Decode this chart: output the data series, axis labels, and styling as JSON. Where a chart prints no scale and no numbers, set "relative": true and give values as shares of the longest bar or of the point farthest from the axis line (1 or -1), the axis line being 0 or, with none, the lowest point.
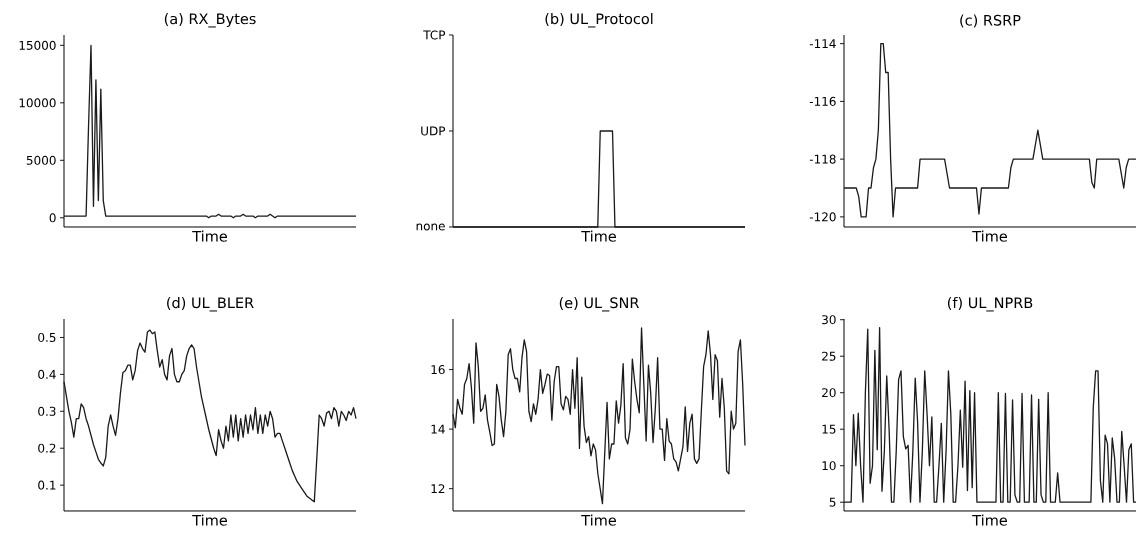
{
  "chart_data": [
    {
      "type": "line",
      "title": "(a) RX_Bytes",
      "xlabel": "Time",
      "tick_labels": "y",
      "color": "#1a1a1a",
      "line_style": "solid",
      "ylim": [
        -800,
        15900
      ],
      "yticks": [
        0,
        5000,
        10000,
        15000
      ],
      "categories": [
        null,
        null,
        null,
        null,
        null,
        null,
        null,
        null,
        null,
        null,
        null,
        null,
        null,
        null,
        null,
        null,
        null,
        null,
        null,
        null,
        null,
        null,
        null,
        null,
        null,
        null,
        null,
        null,
        null,
        null,
        null,
        null,
        null,
        null,
        null,
        null,
        null,
        null,
        null,
        null,
        null,
        null,
        null,
        null,
        null,
        null,
        null,
        null,
        null,
        null,
        null,
        null,
        null,
        null,
        null,
        null,
        null,
        null,
        null,
        null,
        null,
        null,
        null,
        null,
        null,
        null,
        null,
        null,
        null,
        null,
        null,
        null,
        null,
        null,
        null,
        null,
        null,
        null,
        null,
        null,
        null,
        null,
        null,
        null,
        null,
        null,
        null,
        null,
        null,
        null,
        null,
        null,
        null,
        null,
        null,
        null,
        null,
        null,
        null,
        null,
        null,
        null,
        null,
        null,
        null,
        null,
        null,
        null,
        null,
        null,
        null,
        null,
        null,
        null,
        null,
        null,
        null,
        null,
        null,
        null
      ],
      "values": [
        150,
        150,
        150,
        150,
        150,
        150,
        150,
        150,
        150,
        150,
        8000,
        15000,
        1000,
        12000,
        1500,
        11200,
        1500,
        150,
        150,
        150,
        150,
        150,
        150,
        150,
        150,
        150,
        150,
        150,
        150,
        150,
        150,
        150,
        150,
        150,
        150,
        150,
        150,
        150,
        150,
        150,
        150,
        150,
        150,
        150,
        150,
        150,
        150,
        150,
        150,
        150,
        150,
        150,
        150,
        150,
        150,
        150,
        150,
        150,
        150,
        0,
        150,
        150,
        150,
        300,
        150,
        150,
        150,
        150,
        150,
        0,
        150,
        150,
        150,
        300,
        150,
        150,
        150,
        150,
        0,
        150,
        150,
        150,
        150,
        150,
        300,
        150,
        0,
        150,
        150,
        150,
        150,
        150,
        150,
        150,
        150,
        150,
        150,
        150,
        150,
        150,
        150,
        150,
        150,
        150,
        150,
        150,
        150,
        150,
        150,
        150,
        150,
        150,
        150,
        150,
        150,
        150,
        150,
        150,
        150,
        150
      ]
    },
    {
      "type": "line",
      "title": "(b) UL_Protocol",
      "xlabel": "Time",
      "tick_labels": "y",
      "color": "#1a1a1a",
      "line_style": "solid",
      "relative": true,
      "y_categories": [
        "TCP",
        "UDP",
        "none"
      ],
      "categories": [
        null,
        null,
        null,
        null,
        null,
        null,
        null,
        null,
        null,
        null,
        null,
        null,
        null,
        null,
        null,
        null,
        null,
        null,
        null,
        null,
        null,
        null,
        null,
        null,
        null,
        null,
        null,
        null,
        null,
        null,
        null,
        null,
        null,
        null,
        null,
        null,
        null,
        null,
        null,
        null,
        null,
        null,
        null,
        null,
        null,
        null,
        null,
        null,
        null,
        null,
        null,
        null,
        null,
        null,
        null,
        null,
        null,
        null,
        null,
        null,
        null,
        null,
        null,
        null,
        null,
        null,
        null,
        null,
        null,
        null,
        null,
        null,
        null,
        null,
        null,
        null,
        null,
        null,
        null,
        null,
        null,
        null,
        null,
        null,
        null,
        null,
        null,
        null,
        null,
        null,
        null,
        null,
        null,
        null,
        null,
        null,
        null,
        null,
        null,
        null,
        null,
        null,
        null,
        null,
        null,
        null,
        null,
        null,
        null,
        null,
        null,
        null,
        null,
        null,
        null,
        null,
        null,
        null,
        null,
        null
      ],
      "values": [
        0,
        0,
        0,
        0,
        0,
        0,
        0,
        0,
        0,
        0,
        0,
        0,
        0,
        0,
        0,
        0,
        0,
        0,
        0,
        0,
        0,
        0,
        0,
        0,
        0,
        0,
        0,
        0,
        0,
        0,
        0,
        0,
        0,
        0,
        0,
        0,
        0,
        0,
        0,
        0,
        0,
        0,
        0,
        0,
        0,
        0,
        0,
        0,
        0,
        0,
        0,
        0,
        0,
        0,
        0,
        0,
        0,
        0,
        0,
        0,
        1,
        1,
        1,
        1,
        1,
        1,
        0,
        0,
        0,
        0,
        0,
        0,
        0,
        0,
        0,
        0,
        0,
        0,
        0,
        0,
        0,
        0,
        0,
        0,
        0,
        0,
        0,
        0,
        0,
        0,
        0,
        0,
        0,
        0,
        0,
        0,
        0,
        0,
        0,
        0,
        0,
        0,
        0,
        0,
        0,
        0,
        0,
        0,
        0,
        0,
        0,
        0,
        0,
        0,
        0,
        0,
        0,
        0,
        0,
        0
      ]
    },
    {
      "type": "line",
      "title": "(c) RSRP",
      "xlabel": "Time",
      "tick_labels": "y",
      "color": "#1a1a1a",
      "line_style": "solid",
      "ylim": [
        -120.35,
        -113.7
      ],
      "yticks": [
        -120,
        -118,
        -116,
        -114
      ],
      "categories": [
        null,
        null,
        null,
        null,
        null,
        null,
        null,
        null,
        null,
        null,
        null,
        null,
        null,
        null,
        null,
        null,
        null,
        null,
        null,
        null,
        null,
        null,
        null,
        null,
        null,
        null,
        null,
        null,
        null,
        null,
        null,
        null,
        null,
        null,
        null,
        null,
        null,
        null,
        null,
        null,
        null,
        null,
        null,
        null,
        null,
        null,
        null,
        null,
        null,
        null,
        null,
        null,
        null,
        null,
        null,
        null,
        null,
        null,
        null,
        null,
        null,
        null,
        null,
        null,
        null,
        null,
        null,
        null,
        null,
        null,
        null,
        null,
        null,
        null,
        null,
        null,
        null,
        null,
        null,
        null,
        null,
        null,
        null,
        null,
        null,
        null,
        null,
        null,
        null,
        null,
        null,
        null,
        null,
        null,
        null,
        null,
        null,
        null,
        null,
        null,
        null,
        null,
        null,
        null,
        null,
        null,
        null,
        null,
        null,
        null,
        null,
        null,
        null,
        null,
        null,
        null,
        null,
        null,
        null,
        null
      ],
      "values": [
        -119,
        -119,
        -119,
        -119,
        -119,
        -119,
        -119.3,
        -120,
        -120,
        -120,
        -119,
        -119,
        -118.3,
        -118,
        -117,
        -114,
        -114,
        -115,
        -115,
        -118,
        -120,
        -119,
        -119,
        -119,
        -119,
        -119,
        -119,
        -119,
        -119,
        -119,
        -119,
        -118,
        -118,
        -118,
        -118,
        -118,
        -118,
        -118,
        -118,
        -118,
        -118,
        -118,
        -118.5,
        -119,
        -119,
        -119,
        -119,
        -119,
        -119,
        -119,
        -119,
        -119,
        -119,
        -119,
        -119,
        -119.9,
        -119,
        -119,
        -119,
        -119,
        -119,
        -119,
        -119,
        -119,
        -119,
        -119,
        -119,
        -119,
        -118.3,
        -118,
        -118,
        -118,
        -118,
        -118,
        -118,
        -118,
        -118,
        -118,
        -117.5,
        -117,
        -117.5,
        -118,
        -118,
        -118,
        -118,
        -118,
        -118,
        -118,
        -118,
        -118,
        -118,
        -118,
        -118,
        -118,
        -118,
        -118,
        -118,
        -118,
        -118,
        -118,
        -118,
        -118.8,
        -119,
        -118,
        -118,
        -118,
        -118,
        -118,
        -118,
        -118,
        -118,
        -118,
        -118,
        -118.5,
        -119,
        -118.3,
        -118,
        -118,
        -118,
        -118
      ]
    },
    {
      "type": "line",
      "title": "(d) UL_BLER",
      "xlabel": "Time",
      "tick_labels": "y",
      "color": "#1a1a1a",
      "line_style": "solid",
      "ylim": [
        0.03,
        0.55
      ],
      "yticks": [
        0.1,
        0.2,
        0.3,
        0.4,
        0.5
      ],
      "categories": [
        null,
        null,
        null,
        null,
        null,
        null,
        null,
        null,
        null,
        null,
        null,
        null,
        null,
        null,
        null,
        null,
        null,
        null,
        null,
        null,
        null,
        null,
        null,
        null,
        null,
        null,
        null,
        null,
        null,
        null,
        null,
        null,
        null,
        null,
        null,
        null,
        null,
        null,
        null,
        null,
        null,
        null,
        null,
        null,
        null,
        null,
        null,
        null,
        null,
        null,
        null,
        null,
        null,
        null,
        null,
        null,
        null,
        null,
        null,
        null,
        null,
        null,
        null,
        null,
        null,
        null,
        null,
        null,
        null,
        null,
        null,
        null,
        null,
        null,
        null,
        null,
        null,
        null,
        null,
        null,
        null,
        null,
        null,
        null,
        null,
        null,
        null,
        null,
        null,
        null,
        null,
        null,
        null,
        null,
        null,
        null,
        null,
        null,
        null,
        null,
        null,
        null,
        null,
        null,
        null,
        null,
        null,
        null,
        null,
        null,
        null,
        null,
        null,
        null,
        null,
        null,
        null,
        null,
        null,
        null
      ],
      "values": [
        0.38,
        0.34,
        0.3,
        0.27,
        0.23,
        0.28,
        0.28,
        0.32,
        0.31,
        0.28,
        0.26,
        0.235,
        0.21,
        0.19,
        0.17,
        0.16,
        0.152,
        0.175,
        0.26,
        0.29,
        0.26,
        0.235,
        0.28,
        0.35,
        0.405,
        0.41,
        0.425,
        0.425,
        0.385,
        0.41,
        0.465,
        0.485,
        0.47,
        0.46,
        0.515,
        0.52,
        0.51,
        0.515,
        0.465,
        0.42,
        0.44,
        0.4,
        0.385,
        0.45,
        0.47,
        0.4,
        0.38,
        0.38,
        0.4,
        0.41,
        0.45,
        0.47,
        0.48,
        0.47,
        0.42,
        0.38,
        0.34,
        0.31,
        0.28,
        0.25,
        0.225,
        0.2,
        0.18,
        0.25,
        0.22,
        0.2,
        0.26,
        0.22,
        0.29,
        0.23,
        0.29,
        0.22,
        0.28,
        0.23,
        0.29,
        0.24,
        0.29,
        0.25,
        0.31,
        0.24,
        0.29,
        0.24,
        0.29,
        0.26,
        0.3,
        0.28,
        0.23,
        0.24,
        0.24,
        0.22,
        0.2,
        0.18,
        0.16,
        0.14,
        0.125,
        0.11,
        0.1,
        0.09,
        0.08,
        0.07,
        0.065,
        0.06,
        0.055,
        0.17,
        0.29,
        0.28,
        0.26,
        0.295,
        0.3,
        0.28,
        0.31,
        0.3,
        0.26,
        0.3,
        0.29,
        0.275,
        0.3,
        0.29,
        0.31,
        0.28
      ]
    },
    {
      "type": "line",
      "title": "(e) UL_SNR",
      "xlabel": "Time",
      "tick_labels": "y",
      "color": "#1a1a1a",
      "line_style": "solid",
      "ylim": [
        11.25,
        17.7
      ],
      "yticks": [
        12,
        14,
        16
      ],
      "categories": [
        null,
        null,
        null,
        null,
        null,
        null,
        null,
        null,
        null,
        null,
        null,
        null,
        null,
        null,
        null,
        null,
        null,
        null,
        null,
        null,
        null,
        null,
        null,
        null,
        null,
        null,
        null,
        null,
        null,
        null,
        null,
        null,
        null,
        null,
        null,
        null,
        null,
        null,
        null,
        null,
        null,
        null,
        null,
        null,
        null,
        null,
        null,
        null,
        null,
        null,
        null,
        null,
        null,
        null,
        null,
        null,
        null,
        null,
        null,
        null,
        null,
        null,
        null,
        null,
        null,
        null,
        null,
        null,
        null,
        null,
        null,
        null,
        null,
        null,
        null,
        null,
        null,
        null,
        null,
        null,
        null,
        null,
        null,
        null,
        null,
        null,
        null,
        null,
        null,
        null,
        null,
        null,
        null,
        null,
        null,
        null,
        null,
        null,
        null,
        null,
        null,
        null,
        null,
        null,
        null,
        null,
        null,
        null,
        null,
        null,
        null,
        null,
        null,
        null,
        null,
        null,
        null,
        null,
        null,
        null,
        null,
        null,
        null,
        null,
        null,
        null,
        null,
        null
      ],
      "values": [
        14.5,
        14.05,
        15.0,
        14.7,
        14.5,
        15.5,
        15.7,
        16.2,
        15.4,
        14.2,
        16.9,
        16.1,
        14.6,
        14.7,
        15.15,
        14.3,
        13.9,
        13.45,
        13.5,
        15.5,
        15.1,
        14.3,
        13.75,
        14.6,
        16.5,
        16.7,
        16.0,
        15.7,
        15.7,
        15.25,
        16.4,
        17.0,
        16.6,
        14.6,
        14.25,
        14.85,
        14.5,
        15.0,
        16.0,
        15.2,
        15.5,
        15.85,
        15.8,
        14.3,
        15.6,
        16.1,
        16.1,
        14.85,
        14.65,
        15.1,
        15.0,
        14.5,
        16.0,
        14.7,
        16.4,
        13.35,
        15.75,
        14.1,
        13.55,
        13.75,
        13.1,
        13.5,
        13.3,
        12.5,
        12.0,
        11.5,
        13.2,
        14.9,
        13.0,
        13.5,
        13.5,
        14.95,
        14.2,
        14.8,
        16.2,
        13.7,
        13.5,
        14.0,
        16.35,
        15.6,
        15.0,
        14.55,
        17.4,
        15.5,
        13.6,
        16.15,
        15.2,
        13.55,
        14.7,
        16.4,
        14.0,
        14.0,
        12.95,
        14.35,
        13.6,
        13.5,
        13.0,
        12.9,
        12.6,
        13.0,
        13.4,
        14.75,
        13.25,
        14.2,
        14.5,
        13.0,
        12.85,
        13.0,
        14.6,
        16.1,
        16.5,
        17.3,
        16.5,
        15.0,
        16.5,
        16.3,
        14.4,
        15.7,
        14.7,
        12.6,
        12.5,
        14.6,
        14.0,
        14.2,
        16.6,
        17.0,
        15.5,
        13.45
      ]
    },
    {
      "type": "line",
      "title": "(f) UL_NPRB",
      "xlabel": "Time",
      "tick_labels": "y",
      "color": "#1a1a1a",
      "line_style": "solid",
      "ylim": [
        3.8,
        30.1
      ],
      "yticks": [
        5,
        10,
        15,
        20,
        25,
        30
      ],
      "categories": [
        null,
        null,
        null,
        null,
        null,
        null,
        null,
        null,
        null,
        null,
        null,
        null,
        null,
        null,
        null,
        null,
        null,
        null,
        null,
        null,
        null,
        null,
        null,
        null,
        null,
        null,
        null,
        null,
        null,
        null,
        null,
        null,
        null,
        null,
        null,
        null,
        null,
        null,
        null,
        null,
        null,
        null,
        null,
        null,
        null,
        null,
        null,
        null,
        null,
        null,
        null,
        null,
        null,
        null,
        null,
        null,
        null,
        null,
        null,
        null,
        null,
        null,
        null,
        null,
        null,
        null,
        null,
        null,
        null,
        null,
        null,
        null,
        null,
        null,
        null,
        null,
        null,
        null,
        null,
        null,
        null,
        null,
        null,
        null,
        null,
        null,
        null,
        null,
        null,
        null,
        null,
        null,
        null,
        null,
        null,
        null,
        null,
        null,
        null,
        null,
        null,
        null,
        null,
        null,
        null,
        null,
        null,
        null,
        null,
        null,
        null,
        null,
        null,
        null,
        null,
        null,
        null,
        null,
        null,
        null,
        null,
        null,
        null,
        null
      ],
      "values": [
        5,
        5,
        5,
        5,
        17,
        10,
        17.2,
        10,
        5,
        20,
        28.7,
        7.6,
        10,
        25.8,
        12.2,
        28.9,
        6.5,
        12,
        22.3,
        15,
        5,
        5,
        12,
        21.8,
        23,
        14,
        12.3,
        12.8,
        5,
        12,
        22,
        16,
        5,
        12,
        23,
        17,
        10,
        16.7,
        5,
        5,
        10,
        15.8,
        5,
        12,
        23,
        17,
        5,
        5,
        10,
        17.6,
        9.8,
        21.6,
        6.6,
        20.3,
        7,
        20,
        5,
        5,
        5,
        5,
        5,
        5,
        5,
        5,
        5,
        20,
        5,
        5,
        19.9,
        5,
        5,
        19,
        6,
        5,
        5,
        19.9,
        5,
        5,
        5,
        19.7,
        5,
        5,
        19.1,
        6,
        5,
        5,
        20,
        5,
        5,
        5,
        9,
        5,
        5,
        5,
        5,
        5,
        5,
        5,
        5,
        5,
        5,
        5,
        5,
        5,
        5,
        18,
        23,
        23,
        8,
        5,
        14.2,
        13,
        5,
        13.8,
        11,
        5,
        5,
        14.7,
        10,
        5,
        12.2,
        13,
        5,
        5
      ]
    }
  ]
}
